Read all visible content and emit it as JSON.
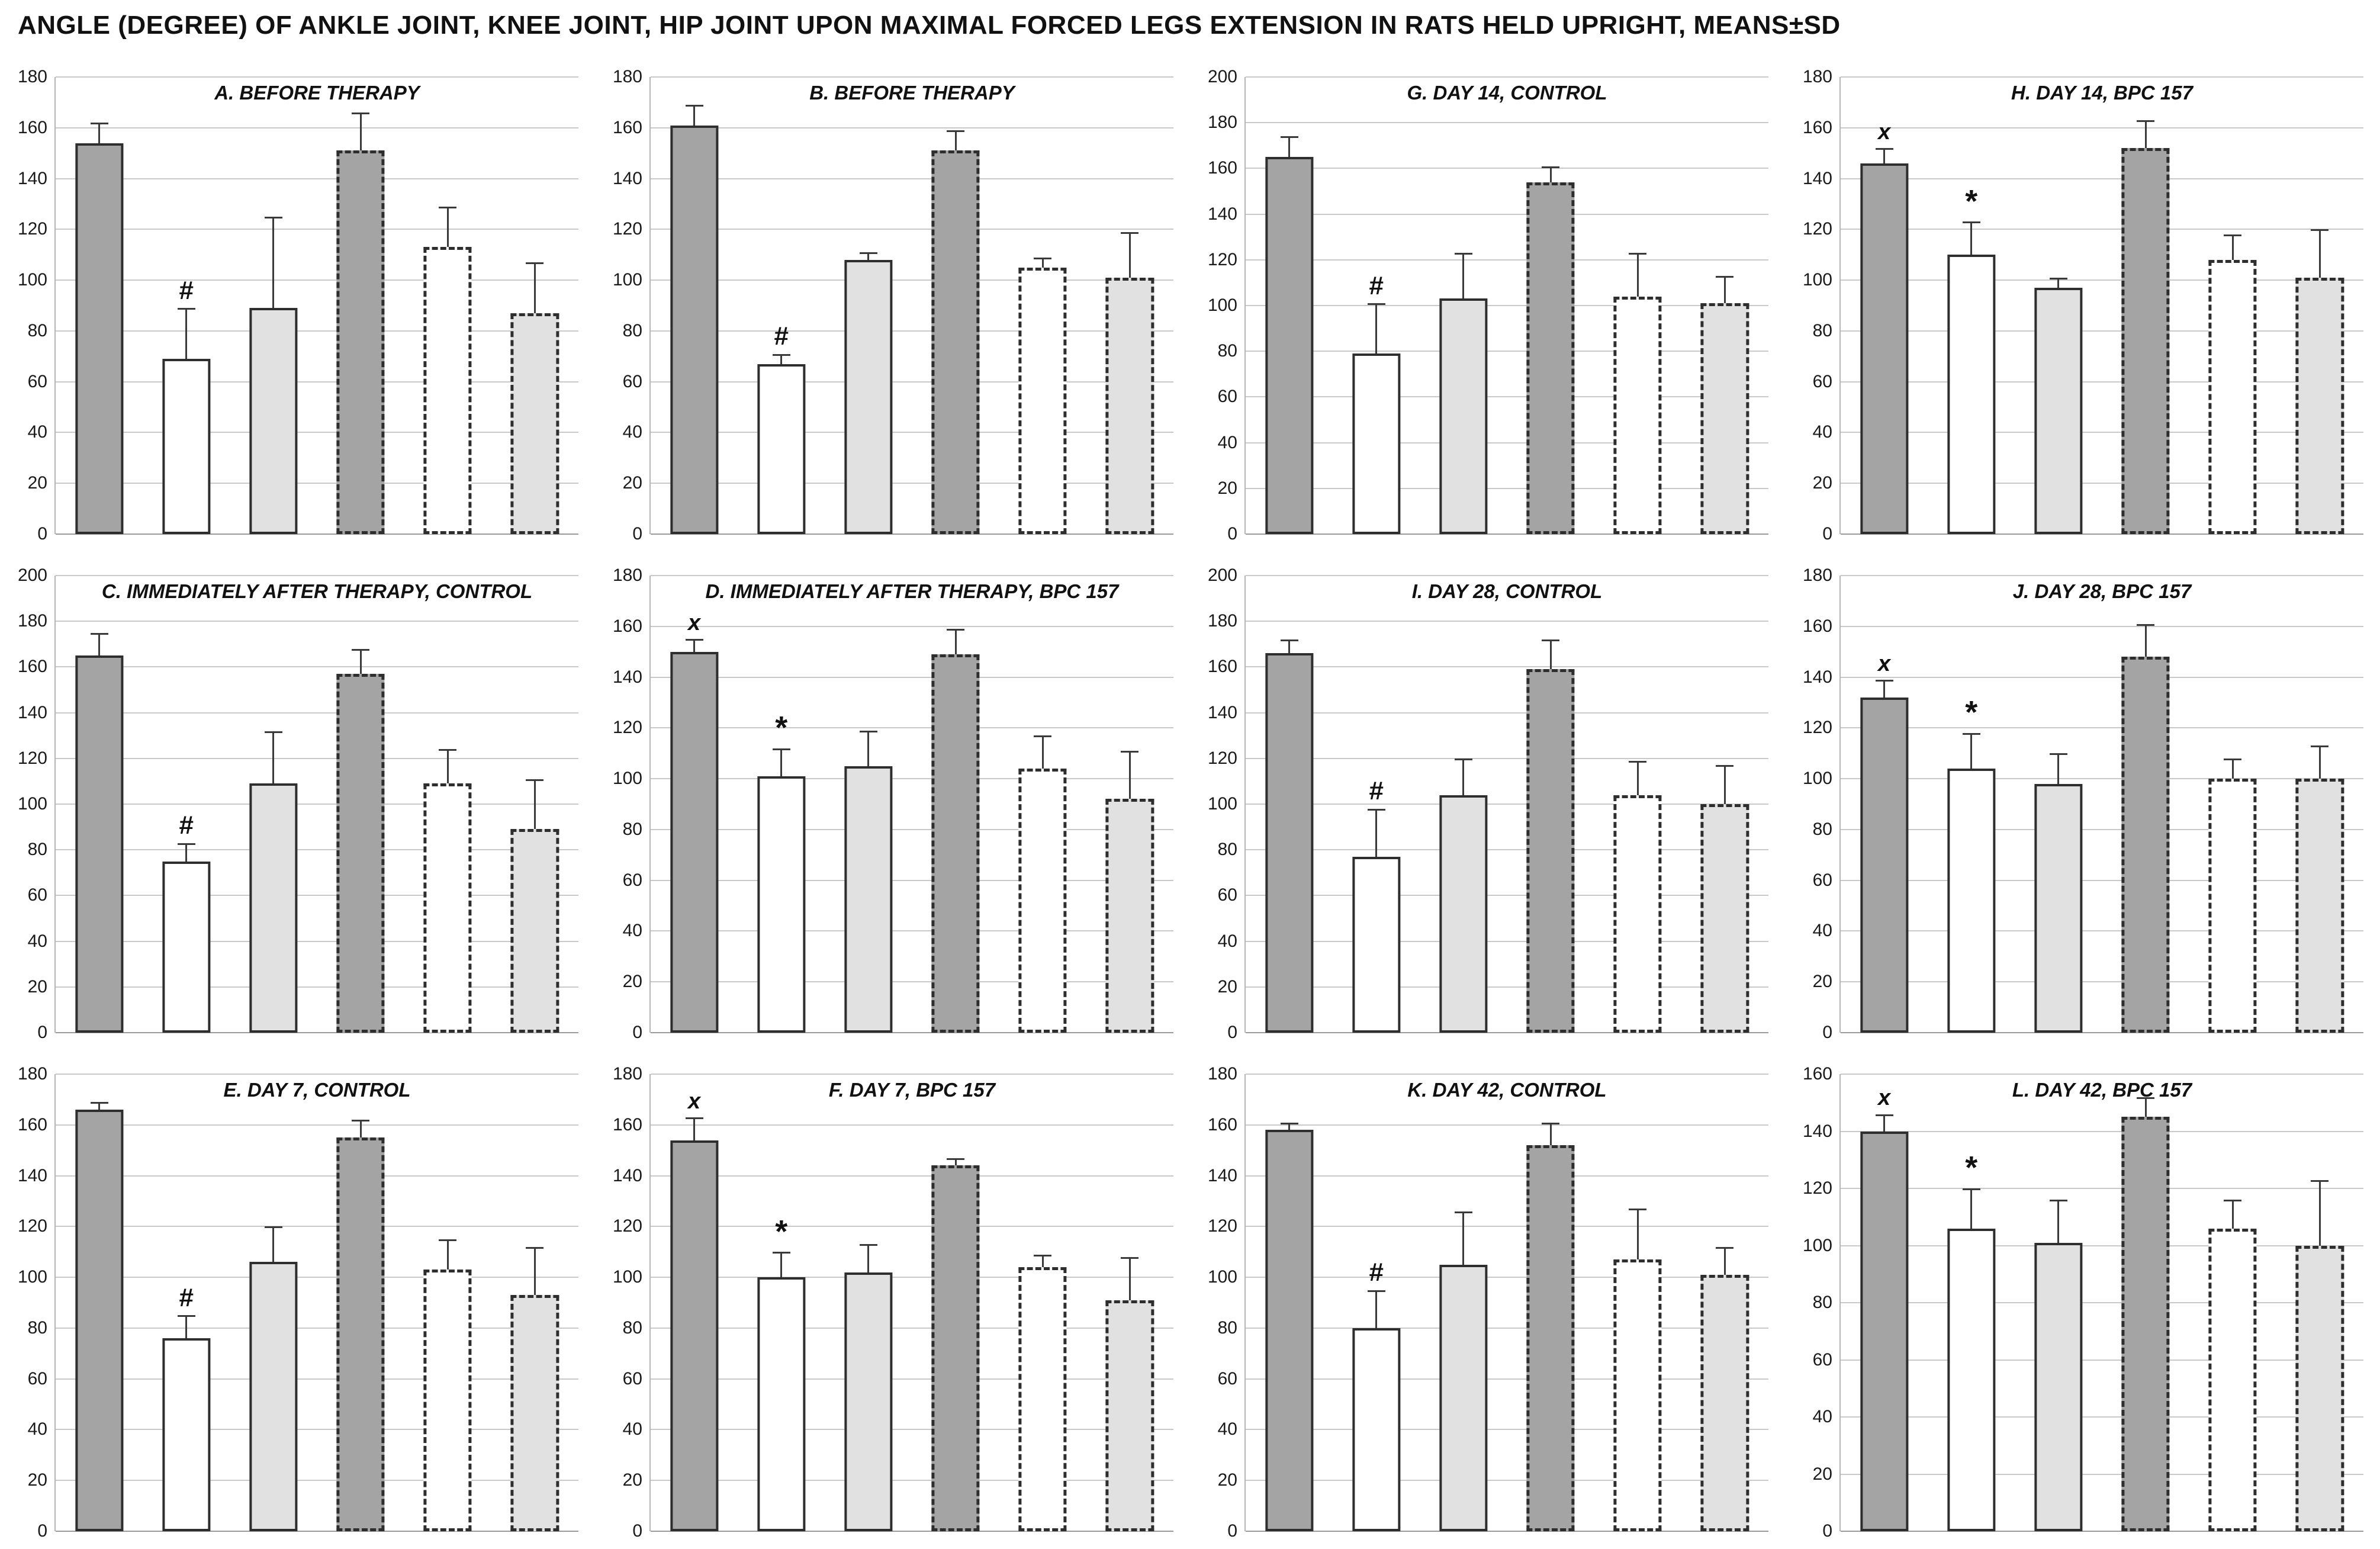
{
  "figure_title": "ANGLE (DEGREE) OF ANKLE JOINT, KNEE JOINT, HIP JOINT UPON MAXIMAL FORCED LEGS EXTENSION IN RATS HELD UPRIGHT, MEANS±SD",
  "colors": {
    "bar_dark": "#a4a4a4",
    "bar_white": "#ffffff",
    "bar_light": "#e1e1e1",
    "bar_border": "#2e2e2e",
    "grid": "#c9c9c9",
    "axis": "#9a9a9a",
    "error": "#3a3a3a",
    "text": "#111111",
    "background": "#ffffff"
  },
  "bar_styles": [
    "dark-solid",
    "white-solid",
    "light-solid",
    "dark-dashed",
    "white-dashed",
    "light-dashed"
  ],
  "annotation_legend": {
    "hash": "#",
    "asterisk": "*",
    "x": "x"
  },
  "chart_data": [
    {
      "id": "A",
      "type": "bar",
      "title": "A. BEFORE THERAPY",
      "ylim": [
        0,
        180
      ],
      "ytick": 20,
      "grid": true,
      "legend": "none",
      "categories": [
        "dark-solid",
        "white-solid",
        "light-solid",
        "dark-dashed",
        "white-dashed",
        "light-dashed"
      ],
      "values": [
        154,
        69,
        89,
        151,
        113,
        87
      ],
      "sd": [
        8,
        20,
        36,
        15,
        16,
        20
      ],
      "annotations": [
        "",
        "#",
        "",
        "",
        "",
        ""
      ]
    },
    {
      "id": "B",
      "type": "bar",
      "title": "B. BEFORE THERAPY",
      "ylim": [
        0,
        180
      ],
      "ytick": 20,
      "grid": true,
      "legend": "none",
      "categories": [
        "dark-solid",
        "white-solid",
        "light-solid",
        "dark-dashed",
        "white-dashed",
        "light-dashed"
      ],
      "values": [
        161,
        67,
        108,
        151,
        105,
        101
      ],
      "sd": [
        8,
        4,
        3,
        8,
        4,
        18
      ],
      "annotations": [
        "",
        "#",
        "",
        "",
        "",
        ""
      ]
    },
    {
      "id": "G",
      "type": "bar",
      "title": "G. DAY 14,  CONTROL",
      "ylim": [
        0,
        200
      ],
      "ytick": 20,
      "grid": true,
      "legend": "none",
      "categories": [
        "dark-solid",
        "white-solid",
        "light-solid",
        "dark-dashed",
        "white-dashed",
        "light-dashed"
      ],
      "values": [
        165,
        79,
        103,
        154,
        104,
        101
      ],
      "sd": [
        9,
        22,
        20,
        7,
        19,
        12
      ],
      "annotations": [
        "",
        "#",
        "",
        "",
        "",
        ""
      ]
    },
    {
      "id": "H",
      "type": "bar",
      "title": "H. DAY 14,  BPC 157",
      "ylim": [
        0,
        180
      ],
      "ytick": 20,
      "grid": true,
      "legend": "none",
      "categories": [
        "dark-solid",
        "white-solid",
        "light-solid",
        "dark-dashed",
        "white-dashed",
        "light-dashed"
      ],
      "values": [
        146,
        110,
        97,
        152,
        108,
        101
      ],
      "sd": [
        6,
        13,
        4,
        11,
        10,
        19
      ],
      "annotations": [
        "x",
        "*",
        "",
        "",
        "",
        ""
      ]
    },
    {
      "id": "C",
      "type": "bar",
      "title": "C. IMMEDIATELY AFTER THERAPY,  CONTROL",
      "ylim": [
        0,
        200
      ],
      "ytick": 20,
      "grid": true,
      "legend": "none",
      "categories": [
        "dark-solid",
        "white-solid",
        "light-solid",
        "dark-dashed",
        "white-dashed",
        "light-dashed"
      ],
      "values": [
        165,
        75,
        109,
        157,
        109,
        89
      ],
      "sd": [
        10,
        8,
        23,
        11,
        15,
        22
      ],
      "annotations": [
        "",
        "#",
        "",
        "",
        "",
        ""
      ]
    },
    {
      "id": "D",
      "type": "bar",
      "title": "D. IMMEDIATELY AFTER THERAPY, BPC 157",
      "ylim": [
        0,
        180
      ],
      "ytick": 20,
      "grid": true,
      "legend": "none",
      "categories": [
        "dark-solid",
        "white-solid",
        "light-solid",
        "dark-dashed",
        "white-dashed",
        "light-dashed"
      ],
      "values": [
        150,
        101,
        105,
        149,
        104,
        92
      ],
      "sd": [
        5,
        11,
        14,
        10,
        13,
        19
      ],
      "annotations": [
        "x",
        "*",
        "",
        "",
        "",
        ""
      ]
    },
    {
      "id": "I",
      "type": "bar",
      "title": "I. DAY 28,  CONTROL",
      "ylim": [
        0,
        200
      ],
      "ytick": 20,
      "grid": true,
      "legend": "none",
      "categories": [
        "dark-solid",
        "white-solid",
        "light-solid",
        "dark-dashed",
        "white-dashed",
        "light-dashed"
      ],
      "values": [
        166,
        77,
        104,
        159,
        104,
        100
      ],
      "sd": [
        6,
        21,
        16,
        13,
        15,
        17
      ],
      "annotations": [
        "",
        "#",
        "",
        "",
        "",
        ""
      ]
    },
    {
      "id": "J",
      "type": "bar",
      "title": "J. DAY 28,  BPC 157",
      "ylim": [
        0,
        180
      ],
      "ytick": 20,
      "grid": true,
      "legend": "none",
      "categories": [
        "dark-solid",
        "white-solid",
        "light-solid",
        "dark-dashed",
        "white-dashed",
        "light-dashed"
      ],
      "values": [
        132,
        104,
        98,
        148,
        100,
        100
      ],
      "sd": [
        7,
        14,
        12,
        13,
        8,
        13
      ],
      "annotations": [
        "x",
        "*",
        "",
        "",
        "",
        ""
      ]
    },
    {
      "id": "E",
      "type": "bar",
      "title": "E. DAY 7,  CONTROL",
      "ylim": [
        0,
        180
      ],
      "ytick": 20,
      "grid": true,
      "legend": "none",
      "categories": [
        "dark-solid",
        "white-solid",
        "light-solid",
        "dark-dashed",
        "white-dashed",
        "light-dashed"
      ],
      "values": [
        166,
        76,
        106,
        155,
        103,
        93
      ],
      "sd": [
        3,
        9,
        14,
        7,
        12,
        19
      ],
      "annotations": [
        "",
        "#",
        "",
        "",
        "",
        ""
      ]
    },
    {
      "id": "F",
      "type": "bar",
      "title": "F. DAY 7,  BPC 157",
      "ylim": [
        0,
        180
      ],
      "ytick": 20,
      "grid": true,
      "legend": "none",
      "categories": [
        "dark-solid",
        "white-solid",
        "light-solid",
        "dark-dashed",
        "white-dashed",
        "light-dashed"
      ],
      "values": [
        154,
        100,
        102,
        144,
        104,
        91
      ],
      "sd": [
        9,
        10,
        11,
        3,
        5,
        17
      ],
      "annotations": [
        "x",
        "*",
        "",
        "",
        "",
        ""
      ]
    },
    {
      "id": "K",
      "type": "bar",
      "title": "K. DAY 42,  CONTROL",
      "ylim": [
        0,
        180
      ],
      "ytick": 20,
      "grid": true,
      "legend": "none",
      "categories": [
        "dark-solid",
        "white-solid",
        "light-solid",
        "dark-dashed",
        "white-dashed",
        "light-dashed"
      ],
      "values": [
        158,
        80,
        105,
        152,
        107,
        101
      ],
      "sd": [
        3,
        15,
        21,
        9,
        20,
        11
      ],
      "annotations": [
        "",
        "#",
        "",
        "",
        "",
        ""
      ]
    },
    {
      "id": "L",
      "type": "bar",
      "title": "L. DAY 42,  BPC 157",
      "ylim": [
        0,
        160
      ],
      "ytick": 20,
      "grid": true,
      "legend": "none",
      "categories": [
        "dark-solid",
        "white-solid",
        "light-solid",
        "dark-dashed",
        "white-dashed",
        "light-dashed"
      ],
      "values": [
        140,
        106,
        101,
        145,
        106,
        100
      ],
      "sd": [
        6,
        14,
        15,
        7,
        10,
        23
      ],
      "annotations": [
        "x",
        "*",
        "",
        "",
        "",
        ""
      ]
    }
  ]
}
